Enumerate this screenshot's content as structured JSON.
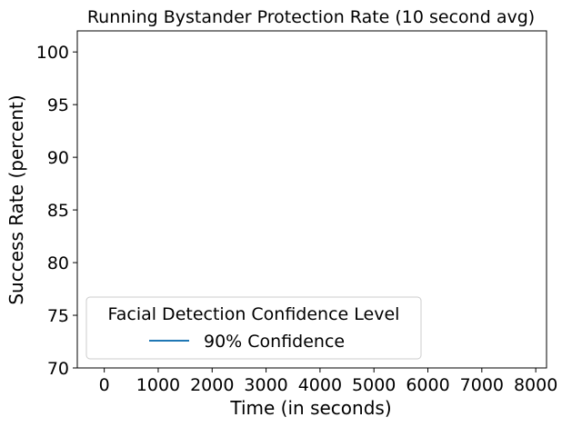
{
  "chart_data": {
    "type": "line",
    "title": "Running Bystander Protection Rate (10 second avg)",
    "xlabel": "Time (in seconds)",
    "ylabel": "Success Rate (percent)",
    "xlim": [
      -500,
      8200
    ],
    "ylim": [
      70,
      102
    ],
    "xticks": [
      0,
      1000,
      2000,
      3000,
      4000,
      5000,
      6000,
      7000,
      8000
    ],
    "yticks": [
      70,
      75,
      80,
      85,
      90,
      95,
      100
    ],
    "grid": false,
    "legend": {
      "title": "Facial Detection Confidence Level",
      "placement": "lower-left",
      "entries": [
        {
          "name": "90% Confidence",
          "color": "#1f77b4"
        }
      ]
    },
    "series": [
      {
        "name": "90% Confidence",
        "color": "#1f77b4",
        "x": [],
        "y": []
      }
    ]
  }
}
